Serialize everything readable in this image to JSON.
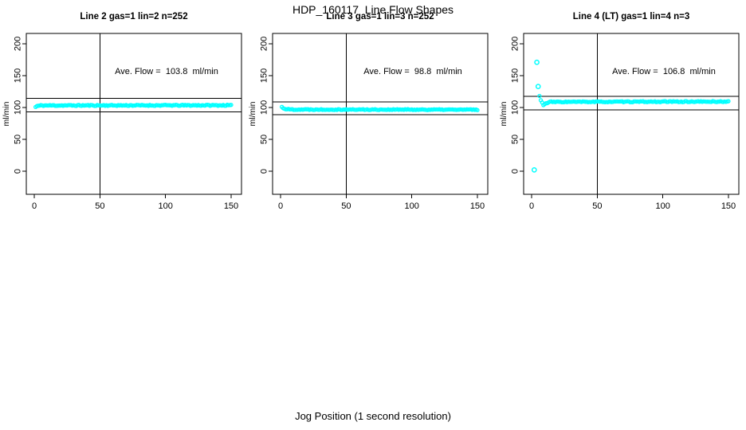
{
  "page": {
    "title": "HDP_160117  Line Flow Shapes",
    "xlabel": "Jog Position (1 second resolution)"
  },
  "chart_data": [
    {
      "type": "scatter",
      "title": "Line 2 gas=1 lin=2 n=252",
      "annotation": "Ave. Flow =  103.8  ml/min",
      "ave_flow_ml_min": 103.8,
      "ylabel": "ml/min",
      "xlim": [
        0,
        150
      ],
      "ylim": [
        0,
        200
      ],
      "xticks": [
        0,
        50,
        100,
        150
      ],
      "yticks": [
        0,
        50,
        100,
        150,
        200
      ],
      "vline_x": 50,
      "hlines": [
        93.4,
        114.2
      ],
      "marker_color": "#00FFFF",
      "band": {
        "x_start": 1,
        "x_end": 150,
        "x_step": 1,
        "noise": 0.8,
        "seed": 11,
        "profile": [
          [
            1,
            100.8
          ],
          [
            2,
            102.2
          ],
          [
            5,
            103.2
          ],
          [
            150,
            103.5
          ]
        ]
      },
      "outliers": []
    },
    {
      "type": "scatter",
      "title": "Line 3 gas=1 lin=3 n=252",
      "annotation": "Ave. Flow =  98.8  ml/min",
      "ave_flow_ml_min": 98.8,
      "ylabel": "ml/min",
      "xlim": [
        0,
        150
      ],
      "ylim": [
        0,
        200
      ],
      "xticks": [
        0,
        50,
        100,
        150
      ],
      "yticks": [
        0,
        50,
        100,
        150,
        200
      ],
      "vline_x": 50,
      "hlines": [
        88.9,
        108.7
      ],
      "marker_color": "#00FFFF",
      "band": {
        "x_start": 1,
        "x_end": 150,
        "x_step": 1,
        "noise": 0.7,
        "seed": 22,
        "profile": [
          [
            1,
            100.8
          ],
          [
            2,
            99.2
          ],
          [
            4,
            97.6
          ],
          [
            8,
            96.9
          ],
          [
            150,
            96.6
          ]
        ]
      },
      "outliers": []
    },
    {
      "type": "scatter",
      "title": "Line 4 (LT) gas=1 lin=4 n=3",
      "annotation": "Ave. Flow =  106.8  ml/min",
      "ave_flow_ml_min": 106.8,
      "ylabel": "ml/min",
      "xlim": [
        0,
        150
      ],
      "ylim": [
        0,
        200
      ],
      "xticks": [
        0,
        50,
        100,
        150
      ],
      "yticks": [
        0,
        50,
        100,
        150,
        200
      ],
      "vline_x": 50,
      "hlines": [
        96.1,
        117.5
      ],
      "marker_color": "#00FFFF",
      "band": {
        "x_start": 6,
        "x_end": 150,
        "x_step": 1,
        "noise": 0.7,
        "seed": 33,
        "profile": [
          [
            6,
            118
          ],
          [
            7,
            111
          ],
          [
            9,
            104.5
          ],
          [
            11,
            106.3
          ],
          [
            14,
            108.8
          ],
          [
            150,
            109.3
          ]
        ]
      },
      "outliers": [
        [
          2,
          2
        ],
        [
          4,
          171
        ],
        [
          5,
          133
        ]
      ]
    }
  ]
}
